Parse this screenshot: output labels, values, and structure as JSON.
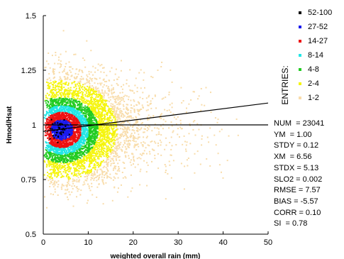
{
  "chart_data": {
    "type": "scatter",
    "title": "",
    "xlabel": "weighted overall rain (mm)",
    "ylabel": "Hmod/Hsat",
    "xlim": [
      0,
      50
    ],
    "ylim": [
      0.5,
      1.5
    ],
    "x_ticks": [
      "0",
      "10",
      "20",
      "30",
      "40",
      "50"
    ],
    "y_ticks": [
      "0.5",
      "0.75",
      "1",
      "1.25",
      "1.5"
    ],
    "legend_title": "ENTRIES:",
    "legend_placement": "right",
    "density_bins": [
      {
        "label": "52-100",
        "color": "#000000"
      },
      {
        "label": "27-52",
        "color": "#1a1aee"
      },
      {
        "label": "14-27",
        "color": "#ee1111"
      },
      {
        "label": "8-14",
        "color": "#22e6e6"
      },
      {
        "label": "4-8",
        "color": "#22cc22"
      },
      {
        "label": "2-4",
        "color": "#f5f50f"
      },
      {
        "label": "1-2",
        "color": "#f8dcaa"
      }
    ],
    "reference_line": {
      "y": 1.0
    },
    "regression_line": {
      "x": [
        0,
        50
      ],
      "y": [
        0.97,
        1.1
      ]
    },
    "statistics": [
      "NUM  = 23041",
      "YM  = 1.00",
      "STDY = 0.12",
      "XM  = 6.56",
      "STDX = 5.13",
      "SLO2 = 0.002",
      "RMSE = 7.57",
      "BIAS = -5.57",
      "CORR = 0.10",
      "SI  = 0.78"
    ]
  }
}
